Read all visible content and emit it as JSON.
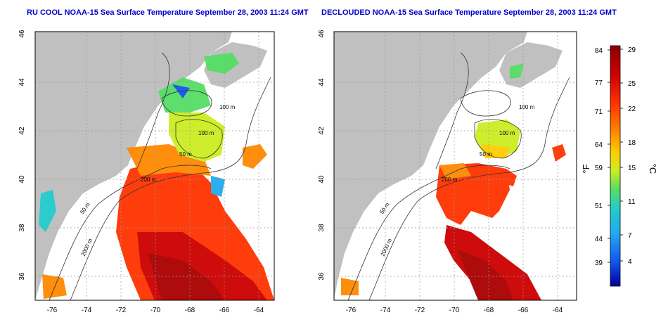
{
  "panels": [
    {
      "title": "RU COOL NOAA-15 Sea Surface Temperature September 28, 2003 11:24 GMT",
      "x_ticks": [
        "-76",
        "-74",
        "-72",
        "-70",
        "-68",
        "-66",
        "-64"
      ],
      "y_ticks": [
        "46",
        "44",
        "42",
        "40",
        "38",
        "36"
      ],
      "contours": [
        "100 m",
        "100 m",
        "50 m",
        "200 m",
        "50 m",
        "2000 m"
      ]
    },
    {
      "title": "DECLOUDED NOAA-15 Sea Surface Temperature September 28, 2003 11:24 GMT",
      "x_ticks": [
        "-76",
        "-74",
        "-72",
        "-70",
        "-68",
        "-66",
        "-64"
      ],
      "y_ticks": [
        "46",
        "44",
        "42",
        "40",
        "38",
        "36"
      ],
      "contours": [
        "100 m",
        "100 m",
        "50 m",
        "200 m",
        "50 m",
        "2000 m"
      ]
    }
  ],
  "colorbar": {
    "f_label": "°F",
    "c_label": "°C",
    "f_ticks": [
      "84",
      "77",
      "71",
      "64",
      "59",
      "51",
      "44",
      "39"
    ],
    "c_ticks": [
      "29",
      "25",
      "22",
      "18",
      "15",
      "11",
      "7",
      "4"
    ],
    "colors": [
      "#8b0000",
      "#cc0000",
      "#ff3300",
      "#ff8800",
      "#ffcc00",
      "#ccee22",
      "#55dd66",
      "#22cccc",
      "#22aaee",
      "#1155ee",
      "#000099"
    ]
  },
  "land_color": "#c0c0c0"
}
